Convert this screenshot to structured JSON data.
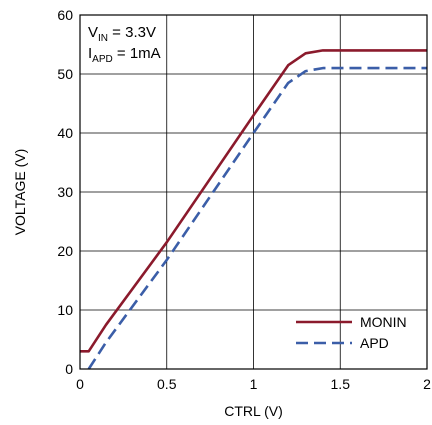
{
  "chart_data": {
    "type": "line",
    "xlabel": "CTRL (V)",
    "ylabel": "VOLTAGE (V)",
    "xlim": [
      0,
      2
    ],
    "ylim": [
      0,
      60
    ],
    "xticks": [
      0,
      0.5,
      1,
      1.5,
      2
    ],
    "yticks": [
      0,
      10,
      20,
      30,
      40,
      50,
      60
    ],
    "xtick_labels": [
      "0",
      "0.5",
      "1",
      "1.5",
      "2"
    ],
    "ytick_labels": [
      "0",
      "10",
      "20",
      "30",
      "40",
      "50",
      "60"
    ],
    "grid": true,
    "legend_position": "bottom-right",
    "annotations": [
      {
        "main": "V",
        "sub": "IN",
        "rest": " = 3.3V"
      },
      {
        "main": "I",
        "sub": "APD",
        "rest": " = 1mA"
      }
    ],
    "series": [
      {
        "name": "MONIN",
        "color": "#8b1a2c",
        "dash": "solid",
        "points": [
          [
            0,
            3
          ],
          [
            0.05,
            3
          ],
          [
            0.15,
            7.5
          ],
          [
            0.5,
            21.5
          ],
          [
            1.0,
            43
          ],
          [
            1.2,
            51.5
          ],
          [
            1.3,
            53.5
          ],
          [
            1.4,
            54
          ],
          [
            2.0,
            54
          ]
        ]
      },
      {
        "name": "APD",
        "color": "#3b5ea8",
        "dash": "dashed",
        "points": [
          [
            0.05,
            0
          ],
          [
            0.15,
            4.5
          ],
          [
            0.5,
            18.5
          ],
          [
            1.0,
            40
          ],
          [
            1.2,
            48.5
          ],
          [
            1.3,
            50.5
          ],
          [
            1.4,
            51
          ],
          [
            2.0,
            51
          ]
        ]
      }
    ]
  }
}
